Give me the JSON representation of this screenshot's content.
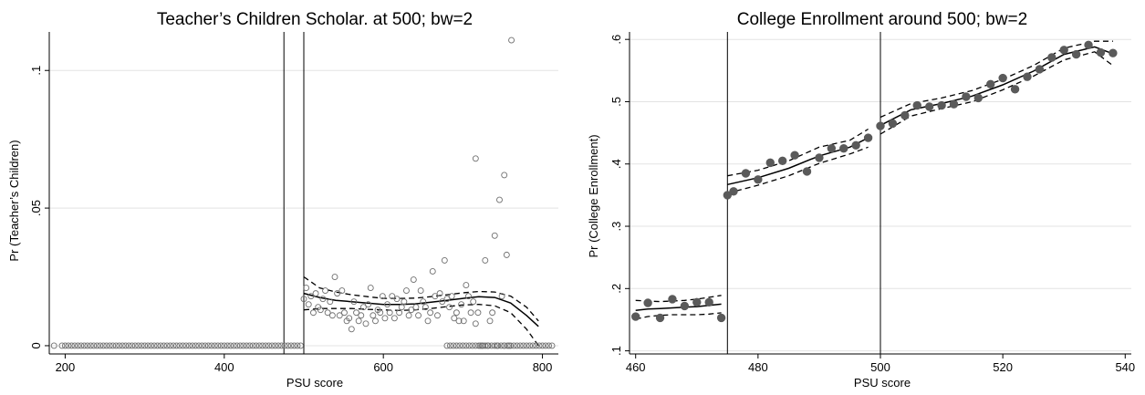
{
  "chart_data": [
    {
      "type": "scatter",
      "title": "Teacher’s Children Scholar. at 500; bw=2",
      "xlabel": "PSU score",
      "ylabel": "Pr (Teacher’s Children)",
      "xlim": [
        180,
        820
      ],
      "ylim": [
        -0.003,
        0.114
      ],
      "x_ticks": [
        200,
        400,
        600,
        800
      ],
      "y_ticks": [
        0,
        0.05,
        0.1
      ],
      "y_tick_labels": [
        "0",
        ".05",
        ".1"
      ],
      "grid": true,
      "legend": "none",
      "vlines": [
        475,
        500
      ],
      "series": [
        {
          "marker": "hollow-circle",
          "x": [
            186,
            196,
            200,
            204,
            208,
            212,
            216,
            220,
            224,
            228,
            232,
            236,
            240,
            244,
            248,
            252,
            256,
            260,
            264,
            268,
            272,
            276,
            280,
            284,
            288,
            292,
            296,
            300,
            304,
            308,
            312,
            316,
            320,
            324,
            328,
            332,
            336,
            340,
            344,
            348,
            352,
            356,
            360,
            364,
            368,
            372,
            376,
            380,
            384,
            388,
            392,
            396,
            400,
            404,
            408,
            412,
            416,
            420,
            424,
            428,
            432,
            436,
            440,
            444,
            448,
            452,
            456,
            460,
            464,
            468,
            472,
            476,
            480,
            484,
            488,
            492,
            496
          ],
          "y": [
            0,
            0,
            0,
            0,
            0,
            0,
            0,
            0,
            0,
            0,
            0,
            0,
            0,
            0,
            0,
            0,
            0,
            0,
            0,
            0,
            0,
            0,
            0,
            0,
            0,
            0,
            0,
            0,
            0,
            0,
            0,
            0,
            0,
            0,
            0,
            0,
            0,
            0,
            0,
            0,
            0,
            0,
            0,
            0,
            0,
            0,
            0,
            0,
            0,
            0,
            0,
            0,
            0,
            0,
            0,
            0,
            0,
            0,
            0,
            0,
            0,
            0,
            0,
            0,
            0,
            0,
            0,
            0,
            0,
            0,
            0,
            0,
            0,
            0,
            0,
            0,
            0
          ]
        },
        {
          "marker": "hollow-circle",
          "x": [
            500,
            503,
            506,
            509,
            512,
            515,
            518,
            521,
            524,
            527,
            530,
            533,
            536,
            539,
            542,
            545,
            548,
            551,
            554,
            557,
            560,
            563,
            566,
            569,
            572,
            575,
            578,
            581,
            584,
            587,
            590,
            593,
            596,
            599,
            602,
            605,
            608,
            611,
            614,
            617,
            620,
            623,
            626,
            629,
            632,
            635,
            638,
            641,
            644,
            647,
            650,
            653,
            656,
            659,
            662,
            665,
            668,
            671,
            674,
            677,
            680,
            683,
            686,
            689,
            692,
            695,
            698,
            701,
            704,
            707,
            710,
            713,
            716,
            719,
            722,
            725,
            728,
            731,
            734,
            737,
            740,
            743,
            746,
            749,
            752,
            755,
            758,
            761
          ],
          "y": [
            0.017,
            0.021,
            0.015,
            0.018,
            0.012,
            0.019,
            0.014,
            0.013,
            0.017,
            0.02,
            0.012,
            0.016,
            0.011,
            0.025,
            0.019,
            0.011,
            0.02,
            0.012,
            0.009,
            0.01,
            0.006,
            0.016,
            0.012,
            0.009,
            0.011,
            0.014,
            0.008,
            0.015,
            0.021,
            0.011,
            0.009,
            0.013,
            0.012,
            0.018,
            0.01,
            0.015,
            0.012,
            0.018,
            0.01,
            0.017,
            0.012,
            0.014,
            0.016,
            0.02,
            0.011,
            0.013,
            0.024,
            0.014,
            0.011,
            0.02,
            0.016,
            0.014,
            0.009,
            0.012,
            0.027,
            0.018,
            0.011,
            0.019,
            0.016,
            0.031,
            0.017,
            0.014,
            0.018,
            0.01,
            0.012,
            0.009,
            0.015,
            0.009,
            0.022,
            0.018,
            0.012,
            0.016,
            0.008,
            0.012,
            0.0,
            0.0,
            0.031,
            0.0,
            0.009,
            0.012,
            0.04,
            0.0,
            0.053,
            0.018,
            0.0,
            0.033,
            0.0,
            0.111
          ]
        },
        {
          "marker": "hollow-circle",
          "x": [
            680,
            684,
            688,
            692,
            696,
            700,
            704,
            708,
            712,
            716,
            720,
            724,
            728,
            732,
            736,
            740,
            744,
            748,
            752,
            756,
            760,
            764,
            768,
            772,
            776,
            780,
            784,
            788,
            792,
            796,
            800,
            804,
            808,
            812,
            716,
            752
          ],
          "y": [
            0,
            0,
            0,
            0,
            0,
            0,
            0,
            0,
            0,
            0,
            0,
            0,
            0,
            0,
            0,
            0,
            0,
            0,
            0,
            0,
            0,
            0,
            0,
            0,
            0,
            0,
            0,
            0,
            0,
            0,
            0,
            0,
            0,
            0,
            0.068,
            0.062
          ]
        }
      ],
      "fit": {
        "x": [
          500,
          520,
          540,
          560,
          580,
          600,
          620,
          640,
          660,
          680,
          700,
          720,
          740,
          760,
          780,
          795
        ],
        "y": [
          0.019,
          0.0175,
          0.0165,
          0.016,
          0.0155,
          0.015,
          0.015,
          0.0152,
          0.0158,
          0.0165,
          0.0172,
          0.0178,
          0.0175,
          0.0155,
          0.011,
          0.007
        ],
        "ci_upper": [
          0.025,
          0.021,
          0.0195,
          0.0185,
          0.0178,
          0.0172,
          0.0172,
          0.0173,
          0.0178,
          0.0185,
          0.0192,
          0.0197,
          0.0195,
          0.018,
          0.014,
          0.009
        ],
        "ci_lower": [
          0.013,
          0.0135,
          0.0135,
          0.0135,
          0.0132,
          0.013,
          0.0128,
          0.013,
          0.0135,
          0.0142,
          0.0148,
          0.015,
          0.0145,
          0.012,
          0.006,
          0.0
        ]
      }
    },
    {
      "type": "scatter",
      "title": "College Enrollment around 500; bw=2",
      "xlabel": "PSU score",
      "ylabel": "Pr (College Enrollment)",
      "xlim": [
        459,
        541
      ],
      "ylim": [
        0.095,
        0.612
      ],
      "x_ticks": [
        460,
        480,
        500,
        520,
        540
      ],
      "y_ticks": [
        0.1,
        0.2,
        0.3,
        0.4,
        0.5,
        0.6
      ],
      "y_tick_labels": [
        ".1",
        ".2",
        ".3",
        ".4",
        ".5",
        ".6"
      ],
      "grid": true,
      "legend": "none",
      "vlines": [
        475,
        500
      ],
      "series": [
        {
          "marker": "filled-circle",
          "x": [
            460,
            462,
            464,
            466,
            468,
            470,
            472,
            474,
            475,
            476,
            478,
            480,
            482,
            484,
            486,
            488,
            490,
            492,
            494,
            496,
            498,
            500,
            502,
            504,
            506,
            508,
            510,
            512,
            514,
            516,
            518,
            520,
            522,
            524,
            526,
            528,
            530,
            532,
            534,
            536,
            538
          ],
          "y": [
            0.155,
            0.177,
            0.153,
            0.183,
            0.172,
            0.178,
            0.178,
            0.153,
            0.35,
            0.356,
            0.385,
            0.375,
            0.402,
            0.405,
            0.414,
            0.388,
            0.41,
            0.425,
            0.425,
            0.43,
            0.442,
            0.461,
            0.465,
            0.478,
            0.494,
            0.492,
            0.494,
            0.496,
            0.508,
            0.506,
            0.528,
            0.538,
            0.52,
            0.54,
            0.552,
            0.571,
            0.583,
            0.576,
            0.591,
            0.579,
            0.578
          ]
        }
      ],
      "fits": [
        {
          "x": [
            460,
            462,
            464,
            466,
            468,
            470,
            472,
            474
          ],
          "y": [
            0.165,
            0.167,
            0.168,
            0.169,
            0.17,
            0.171,
            0.173,
            0.175
          ],
          "ci_upper": [
            0.181,
            0.18,
            0.179,
            0.18,
            0.181,
            0.183,
            0.186,
            0.189
          ],
          "ci_lower": [
            0.151,
            0.155,
            0.157,
            0.158,
            0.158,
            0.158,
            0.159,
            0.161
          ]
        },
        {
          "x": [
            475,
            480,
            485,
            490,
            495,
            498
          ],
          "y": [
            0.367,
            0.378,
            0.393,
            0.413,
            0.427,
            0.442
          ],
          "ci_upper": [
            0.381,
            0.39,
            0.405,
            0.427,
            0.438,
            0.456
          ],
          "ci_lower": [
            0.353,
            0.366,
            0.381,
            0.401,
            0.416,
            0.427
          ]
        },
        {
          "x": [
            500,
            505,
            510,
            515,
            520,
            525,
            530,
            535,
            538
          ],
          "y": [
            0.462,
            0.487,
            0.497,
            0.509,
            0.527,
            0.549,
            0.576,
            0.588,
            0.577
          ],
          "ci_upper": [
            0.475,
            0.497,
            0.506,
            0.518,
            0.536,
            0.558,
            0.586,
            0.597,
            0.597
          ],
          "ci_lower": [
            0.448,
            0.477,
            0.489,
            0.5,
            0.519,
            0.541,
            0.567,
            0.58,
            0.558
          ]
        }
      ]
    }
  ]
}
